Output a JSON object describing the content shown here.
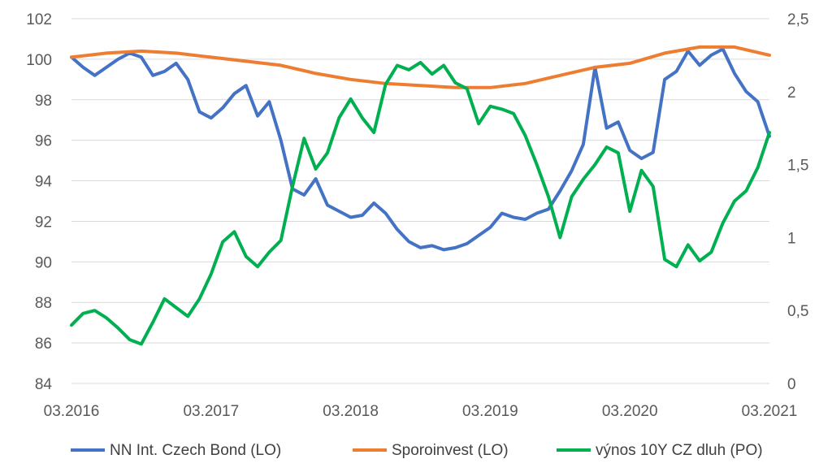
{
  "chart_data": {
    "type": "line",
    "title": "",
    "x_ticks": [
      "03.2016",
      "03.2017",
      "03.2018",
      "03.2019",
      "03.2020",
      "03.2021"
    ],
    "x_range": [
      "03.2016",
      "03.2021"
    ],
    "y_left": {
      "ticks": [
        "84",
        "86",
        "88",
        "90",
        "92",
        "94",
        "96",
        "98",
        "100",
        "102"
      ],
      "min": 84,
      "max": 102
    },
    "y_right": {
      "ticks": [
        "0",
        "0,5",
        "1",
        "1,5",
        "2",
        "2,5"
      ],
      "min": 0,
      "max": 2.5
    },
    "grid": true,
    "legend_position": "bottom",
    "series": [
      {
        "name": "NN Int. Czech Bond (LO)",
        "axis": "left",
        "color": "#4472C4",
        "points": [
          [
            "2016-03",
            100.1
          ],
          [
            "2016-04",
            99.6
          ],
          [
            "2016-05",
            99.2
          ],
          [
            "2016-06",
            99.6
          ],
          [
            "2016-07",
            100.0
          ],
          [
            "2016-08",
            100.3
          ],
          [
            "2016-09",
            100.1
          ],
          [
            "2016-10",
            99.2
          ],
          [
            "2016-11",
            99.4
          ],
          [
            "2016-12",
            99.8
          ],
          [
            "2017-01",
            99.0
          ],
          [
            "2017-02",
            97.4
          ],
          [
            "2017-03",
            97.1
          ],
          [
            "2017-04",
            97.6
          ],
          [
            "2017-05",
            98.3
          ],
          [
            "2017-06",
            98.7
          ],
          [
            "2017-07",
            97.2
          ],
          [
            "2017-08",
            97.9
          ],
          [
            "2017-09",
            96.0
          ],
          [
            "2017-10",
            93.6
          ],
          [
            "2017-11",
            93.3
          ],
          [
            "2017-12",
            94.1
          ],
          [
            "2018-01",
            92.8
          ],
          [
            "2018-02",
            92.5
          ],
          [
            "2018-03",
            92.2
          ],
          [
            "2018-04",
            92.3
          ],
          [
            "2018-05",
            92.9
          ],
          [
            "2018-06",
            92.4
          ],
          [
            "2018-07",
            91.6
          ],
          [
            "2018-08",
            91.0
          ],
          [
            "2018-09",
            90.7
          ],
          [
            "2018-10",
            90.8
          ],
          [
            "2018-11",
            90.6
          ],
          [
            "2018-12",
            90.7
          ],
          [
            "2019-01",
            90.9
          ],
          [
            "2019-02",
            91.3
          ],
          [
            "2019-03",
            91.7
          ],
          [
            "2019-04",
            92.4
          ],
          [
            "2019-05",
            92.2
          ],
          [
            "2019-06",
            92.1
          ],
          [
            "2019-07",
            92.4
          ],
          [
            "2019-08",
            92.6
          ],
          [
            "2019-09",
            93.5
          ],
          [
            "2019-10",
            94.5
          ],
          [
            "2019-11",
            95.8
          ],
          [
            "2019-12",
            99.6
          ],
          [
            "2020-01",
            96.6
          ],
          [
            "2020-02",
            96.9
          ],
          [
            "2020-03",
            95.5
          ],
          [
            "2020-04",
            95.1
          ],
          [
            "2020-05",
            95.4
          ],
          [
            "2020-06",
            99.0
          ],
          [
            "2020-07",
            99.4
          ],
          [
            "2020-08",
            100.4
          ],
          [
            "2020-09",
            99.7
          ],
          [
            "2020-10",
            100.2
          ],
          [
            "2020-11",
            100.5
          ],
          [
            "2020-12",
            99.3
          ],
          [
            "2021-01",
            98.4
          ],
          [
            "2021-02",
            97.9
          ],
          [
            "2021-03",
            96.2
          ]
        ]
      },
      {
        "name": "Sporoinvest (LO)",
        "axis": "left",
        "color": "#ED7D31",
        "points": [
          [
            "2016-03",
            100.1
          ],
          [
            "2016-06",
            100.3
          ],
          [
            "2016-09",
            100.4
          ],
          [
            "2016-12",
            100.3
          ],
          [
            "2017-03",
            100.1
          ],
          [
            "2017-06",
            99.9
          ],
          [
            "2017-09",
            99.7
          ],
          [
            "2017-12",
            99.3
          ],
          [
            "2018-03",
            99.0
          ],
          [
            "2018-06",
            98.8
          ],
          [
            "2018-09",
            98.7
          ],
          [
            "2018-12",
            98.6
          ],
          [
            "2019-03",
            98.6
          ],
          [
            "2019-06",
            98.8
          ],
          [
            "2019-09",
            99.2
          ],
          [
            "2019-12",
            99.6
          ],
          [
            "2020-03",
            99.8
          ],
          [
            "2020-06",
            100.3
          ],
          [
            "2020-09",
            100.6
          ],
          [
            "2020-12",
            100.6
          ],
          [
            "2021-03",
            100.2
          ]
        ]
      },
      {
        "name": "výnos 10Y CZ dluh (PO)",
        "axis": "right",
        "color": "#00B050",
        "points": [
          [
            "2016-03",
            0.4
          ],
          [
            "2016-04",
            0.48
          ],
          [
            "2016-05",
            0.5
          ],
          [
            "2016-06",
            0.45
          ],
          [
            "2016-07",
            0.38
          ],
          [
            "2016-08",
            0.3
          ],
          [
            "2016-09",
            0.27
          ],
          [
            "2016-10",
            0.42
          ],
          [
            "2016-11",
            0.58
          ],
          [
            "2016-12",
            0.52
          ],
          [
            "2017-01",
            0.46
          ],
          [
            "2017-02",
            0.58
          ],
          [
            "2017-03",
            0.75
          ],
          [
            "2017-04",
            0.97
          ],
          [
            "2017-05",
            1.04
          ],
          [
            "2017-06",
            0.87
          ],
          [
            "2017-07",
            0.8
          ],
          [
            "2017-08",
            0.9
          ],
          [
            "2017-09",
            0.98
          ],
          [
            "2017-10",
            1.35
          ],
          [
            "2017-11",
            1.68
          ],
          [
            "2017-12",
            1.47
          ],
          [
            "2018-01",
            1.58
          ],
          [
            "2018-02",
            1.82
          ],
          [
            "2018-03",
            1.95
          ],
          [
            "2018-04",
            1.82
          ],
          [
            "2018-05",
            1.72
          ],
          [
            "2018-06",
            2.05
          ],
          [
            "2018-07",
            2.18
          ],
          [
            "2018-08",
            2.15
          ],
          [
            "2018-09",
            2.2
          ],
          [
            "2018-10",
            2.12
          ],
          [
            "2018-11",
            2.18
          ],
          [
            "2018-12",
            2.06
          ],
          [
            "2019-01",
            2.02
          ],
          [
            "2019-02",
            1.78
          ],
          [
            "2019-03",
            1.9
          ],
          [
            "2019-04",
            1.88
          ],
          [
            "2019-05",
            1.85
          ],
          [
            "2019-06",
            1.7
          ],
          [
            "2019-07",
            1.5
          ],
          [
            "2019-08",
            1.28
          ],
          [
            "2019-09",
            1.0
          ],
          [
            "2019-10",
            1.28
          ],
          [
            "2019-11",
            1.4
          ],
          [
            "2019-12",
            1.5
          ],
          [
            "2020-01",
            1.62
          ],
          [
            "2020-02",
            1.58
          ],
          [
            "2020-03",
            1.18
          ],
          [
            "2020-04",
            1.46
          ],
          [
            "2020-05",
            1.35
          ],
          [
            "2020-06",
            0.85
          ],
          [
            "2020-07",
            0.8
          ],
          [
            "2020-08",
            0.95
          ],
          [
            "2020-09",
            0.84
          ],
          [
            "2020-10",
            0.9
          ],
          [
            "2020-11",
            1.1
          ],
          [
            "2020-12",
            1.25
          ],
          [
            "2021-01",
            1.32
          ],
          [
            "2021-02",
            1.48
          ],
          [
            "2021-03",
            1.72
          ]
        ]
      }
    ]
  }
}
